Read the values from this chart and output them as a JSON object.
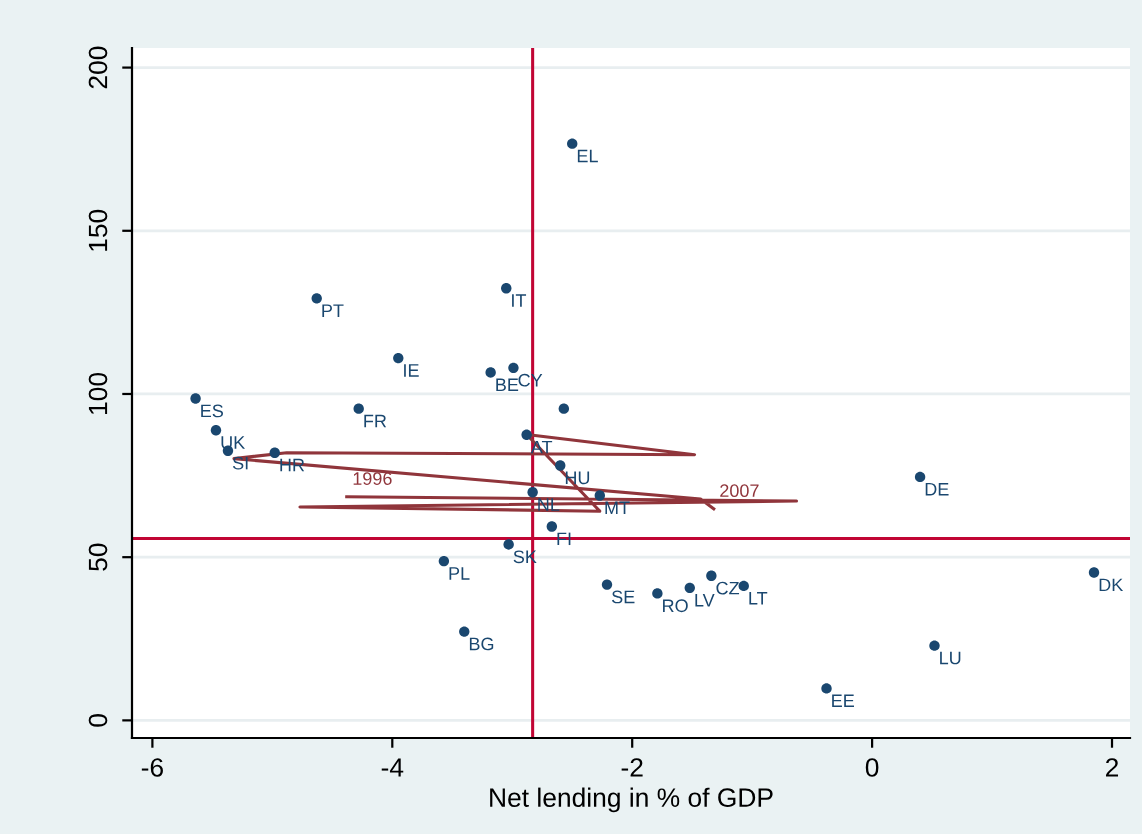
{
  "chart_data": {
    "type": "scatter",
    "xlabel": "Net lending in % of GDP",
    "xlim": [
      -6.17,
      2.15
    ],
    "xticks": [
      {
        "value": -6,
        "label": "-6"
      },
      {
        "value": -4,
        "label": "-4"
      },
      {
        "value": -2,
        "label": "-2"
      },
      0,
      2
    ],
    "ylim": [
      -5.4,
      206
    ],
    "yticks": [
      0,
      50,
      100,
      150,
      200
    ],
    "grid": "y",
    "legend": false,
    "series": [
      {
        "color": "#1a476f",
        "marker": "circle",
        "x": [
          -2.5,
          -4.63,
          -3.05,
          -3.95,
          -3.18,
          -2.99,
          -2.57,
          -5.64,
          -4.28,
          -5.47,
          -5.37,
          -4.98,
          -2.88,
          -2.6,
          -2.83,
          -2.27,
          -2.67,
          -3.03,
          -3.57,
          -3.4,
          -2.21,
          -1.79,
          -1.52,
          -1.34,
          -1.07,
          1.85,
          0.52,
          -0.38,
          0.4
        ],
        "values": [
          176.7,
          129.3,
          132.4,
          111,
          106.6,
          108,
          95.5,
          98.6,
          95.5,
          88.9,
          82.6,
          82,
          87.5,
          78.1,
          69.9,
          68.9,
          59.4,
          53.9,
          48.8,
          27.2,
          41.6,
          38.9,
          40.6,
          44.3,
          41.2,
          45.3,
          22.9,
          9.8,
          74.6
        ]
      },
      {
        "type": "line",
        "color": "#90353b",
        "marker": "none",
        "line_style": "solid",
        "x": [
          -4.38,
          -0.63,
          -4.77,
          -2.27,
          -2.88,
          -1.48,
          -4.88,
          -5.32,
          -1.43,
          -1.32
        ],
        "values": [
          68.5,
          67.2,
          65.4,
          64.1,
          87.6,
          81.4,
          82.0,
          80.2,
          67.8,
          64.8
        ]
      }
    ],
    "ref_lines": [
      {
        "axis": "x",
        "value": -2.83,
        "color": "#c10534"
      },
      {
        "axis": "y",
        "value": 55.7,
        "color": "#c10534"
      }
    ],
    "annotations": [
      {
        "text": "EL",
        "x": -2.5,
        "y": 176.7
      },
      {
        "text": "PT",
        "x": -4.63,
        "y": 129.3
      },
      {
        "text": "IT",
        "x": -3.05,
        "y": 132.4
      },
      {
        "text": "IE",
        "x": -3.95,
        "y": 111
      },
      {
        "text": "BE",
        "x": -3.18,
        "y": 106.6
      },
      {
        "text": "CY",
        "x": -2.99,
        "y": 108
      },
      {
        "text": "ES",
        "x": -5.64,
        "y": 98.6
      },
      {
        "text": "FR",
        "x": -4.28,
        "y": 95.5
      },
      {
        "text": "UK",
        "x": -5.47,
        "y": 88.9
      },
      {
        "text": "SI",
        "x": -5.37,
        "y": 82.6
      },
      {
        "text": "HR",
        "x": -4.98,
        "y": 82
      },
      {
        "text": "AT",
        "x": -2.88,
        "y": 87.5
      },
      {
        "text": "HU",
        "x": -2.6,
        "y": 78.1
      },
      {
        "text": "NL",
        "x": -2.83,
        "y": 69.9
      },
      {
        "text": "MT",
        "x": -2.27,
        "y": 68.9
      },
      {
        "text": "FI",
        "x": -2.67,
        "y": 59.4
      },
      {
        "text": "SK",
        "x": -3.03,
        "y": 53.9
      },
      {
        "text": "PL",
        "x": -3.57,
        "y": 48.8
      },
      {
        "text": "BG",
        "x": -3.4,
        "y": 27.2
      },
      {
        "text": "SE",
        "x": -2.21,
        "y": 41.6
      },
      {
        "text": "RO",
        "x": -1.79,
        "y": 38.9
      },
      {
        "text": "LV",
        "x": -1.52,
        "y": 40.6
      },
      {
        "text": "CZ",
        "x": -1.34,
        "y": 44.3
      },
      {
        "text": "LT",
        "x": -1.07,
        "y": 41.2
      },
      {
        "text": "DK",
        "x": 1.85,
        "y": 45.3
      },
      {
        "text": "LU",
        "x": 0.52,
        "y": 22.9
      },
      {
        "text": "EE",
        "x": -0.38,
        "y": 9.8
      },
      {
        "text": "DE",
        "x": 0.4,
        "y": 74.6
      },
      {
        "text": "1996",
        "x": -4.38,
        "y": 68.5
      },
      {
        "text": "2007",
        "x": -1.32,
        "y": 64.8
      }
    ]
  }
}
